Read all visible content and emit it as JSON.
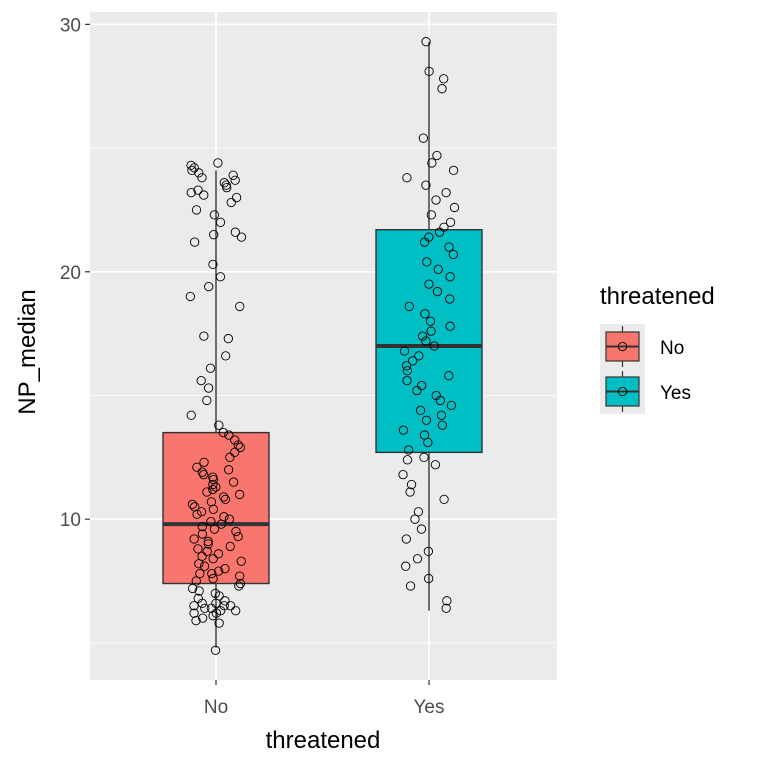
{
  "chart_data": {
    "type": "box",
    "title": "",
    "xlabel": "threatened",
    "ylabel": "NP_median",
    "categories": [
      "No",
      "Yes"
    ],
    "ylim": [
      3.5,
      30.5
    ],
    "yticks": [
      10,
      20,
      30
    ],
    "grid": true,
    "legend": {
      "title": "threatened",
      "placement": "right"
    },
    "colors": {
      "No": "#F8766D",
      "Yes": "#00BFC4",
      "panel": "#EBEBEB",
      "grid": "#FFFFFF"
    },
    "boxes": [
      {
        "category": "No",
        "whisker_low": 4.8,
        "q1": 7.4,
        "median": 9.8,
        "q3": 13.5,
        "whisker_high": 24.1
      },
      {
        "category": "Yes",
        "whisker_low": 6.3,
        "q1": 12.7,
        "median": 17.0,
        "q3": 21.7,
        "whisker_high": 29.3
      }
    ],
    "points": {
      "No": [
        4.7,
        5.8,
        5.9,
        6.0,
        6.1,
        6.2,
        6.2,
        6.3,
        6.3,
        6.4,
        6.4,
        6.5,
        6.5,
        6.5,
        6.6,
        6.6,
        6.7,
        6.8,
        6.9,
        7.0,
        7.1,
        7.2,
        7.3,
        7.4,
        7.5,
        7.6,
        7.7,
        7.8,
        7.8,
        7.9,
        8.0,
        8.1,
        8.2,
        8.3,
        8.4,
        8.5,
        8.6,
        8.7,
        8.8,
        8.9,
        9.0,
        9.1,
        9.2,
        9.3,
        9.4,
        9.5,
        9.6,
        9.7,
        9.8,
        9.9,
        10.0,
        10.1,
        10.2,
        10.3,
        10.4,
        10.5,
        10.6,
        10.7,
        10.8,
        10.9,
        11.0,
        11.1,
        11.2,
        11.3,
        11.4,
        11.5,
        11.6,
        11.7,
        11.8,
        11.9,
        12.0,
        12.1,
        12.3,
        12.5,
        12.7,
        12.9,
        13.0,
        13.2,
        13.4,
        13.5,
        13.8,
        14.2,
        14.8,
        15.3,
        15.6,
        16.1,
        16.6,
        17.3,
        17.4,
        18.6,
        19.0,
        19.4,
        19.8,
        20.3,
        21.2,
        21.4,
        21.5,
        21.6,
        22.0,
        22.3,
        22.5,
        22.8,
        23.0,
        23.1,
        23.2,
        23.3,
        23.4,
        23.5,
        23.6,
        23.7,
        23.8,
        23.9,
        24.0,
        24.1,
        24.2,
        24.3,
        24.4
      ],
      "Yes": [
        6.4,
        6.7,
        7.3,
        7.6,
        8.1,
        8.4,
        8.7,
        9.2,
        9.6,
        10.0,
        10.3,
        10.8,
        11.1,
        11.4,
        11.8,
        12.2,
        12.4,
        12.5,
        12.8,
        13.1,
        13.4,
        13.6,
        13.8,
        14.0,
        14.2,
        14.4,
        14.6,
        14.8,
        15.0,
        15.2,
        15.4,
        15.6,
        15.8,
        16.0,
        16.2,
        16.4,
        16.6,
        16.8,
        17.0,
        17.2,
        17.4,
        17.6,
        17.8,
        18.0,
        18.3,
        18.6,
        18.9,
        19.2,
        19.5,
        19.8,
        20.1,
        20.4,
        20.7,
        21.0,
        21.2,
        21.4,
        21.6,
        21.8,
        22.0,
        22.3,
        22.6,
        22.9,
        23.2,
        23.5,
        23.8,
        24.1,
        24.4,
        24.7,
        25.4,
        27.4,
        27.8,
        28.1,
        29.3
      ]
    }
  }
}
